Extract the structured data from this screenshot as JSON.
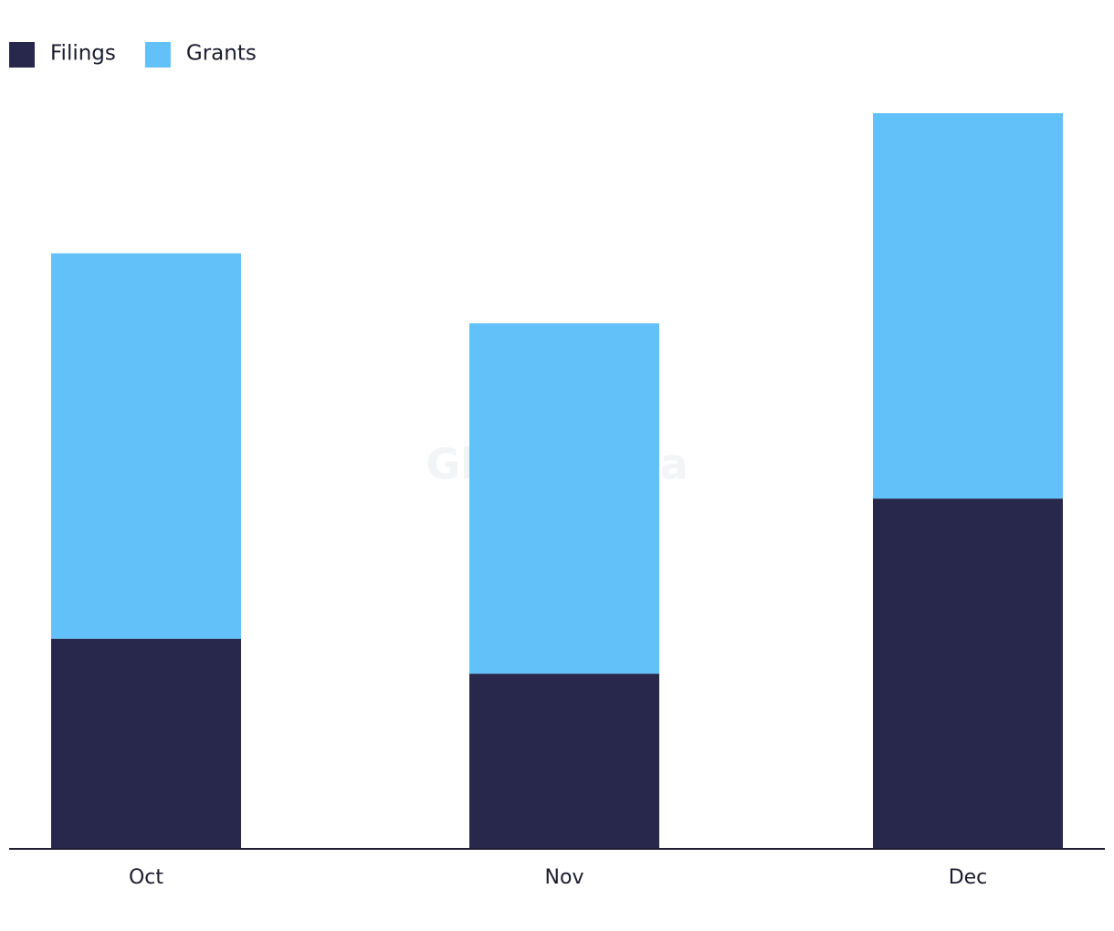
{
  "chart_data": {
    "type": "stacked-bar",
    "watermark": "GlobalData",
    "categories": [
      "Oct",
      "Nov",
      "Dec"
    ],
    "series": [
      {
        "name": "Filings",
        "color": "#27284c",
        "values": [
          6,
          5,
          10
        ]
      },
      {
        "name": "Grants",
        "color": "#62c1f8",
        "values": [
          11,
          10,
          11
        ]
      }
    ],
    "legend": "top-left"
  }
}
